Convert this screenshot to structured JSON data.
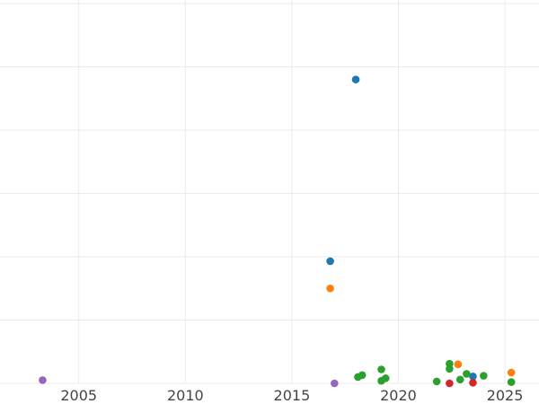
{
  "chart_data": {
    "type": "scatter",
    "title": "",
    "xlabel": "",
    "ylabel": "",
    "grid": true,
    "xlim": [
      2001.3,
      2026.6
    ],
    "ylim": [
      0,
      6
    ],
    "x_ticks": [
      {
        "value": 2005,
        "label": "2005"
      },
      {
        "value": 2010,
        "label": "2010"
      },
      {
        "value": 2015,
        "label": "2015"
      },
      {
        "value": 2020,
        "label": "2020"
      },
      {
        "value": 2025,
        "label": "2025"
      }
    ],
    "y_grid": [
      0,
      1,
      2,
      3,
      4,
      5,
      6
    ],
    "series": [
      {
        "color": "#1f77b4",
        "points": [
          {
            "x": 2018.0,
            "y": 4.8
          },
          {
            "x": 2016.8,
            "y": 1.93
          },
          {
            "x": 2023.5,
            "y": 0.11
          }
        ]
      },
      {
        "color": "#ff7f0e",
        "points": [
          {
            "x": 2016.8,
            "y": 1.5
          },
          {
            "x": 2022.8,
            "y": 0.3
          },
          {
            "x": 2025.3,
            "y": 0.17
          }
        ]
      },
      {
        "color": "#2ca02c",
        "points": [
          {
            "x": 2018.1,
            "y": 0.1
          },
          {
            "x": 2018.3,
            "y": 0.13
          },
          {
            "x": 2019.2,
            "y": 0.22
          },
          {
            "x": 2019.2,
            "y": 0.04
          },
          {
            "x": 2019.4,
            "y": 0.08
          },
          {
            "x": 2021.8,
            "y": 0.03
          },
          {
            "x": 2022.4,
            "y": 0.31
          },
          {
            "x": 2022.4,
            "y": 0.23
          },
          {
            "x": 2022.9,
            "y": 0.06
          },
          {
            "x": 2023.2,
            "y": 0.15
          },
          {
            "x": 2024.0,
            "y": 0.12
          },
          {
            "x": 2025.3,
            "y": 0.02
          }
        ]
      },
      {
        "color": "#d62728",
        "points": [
          {
            "x": 2022.4,
            "y": 0.0
          },
          {
            "x": 2023.5,
            "y": 0.01
          }
        ]
      },
      {
        "color": "#9467bd",
        "points": [
          {
            "x": 2003.3,
            "y": 0.05
          },
          {
            "x": 2017.0,
            "y": 0.0
          }
        ]
      }
    ]
  }
}
